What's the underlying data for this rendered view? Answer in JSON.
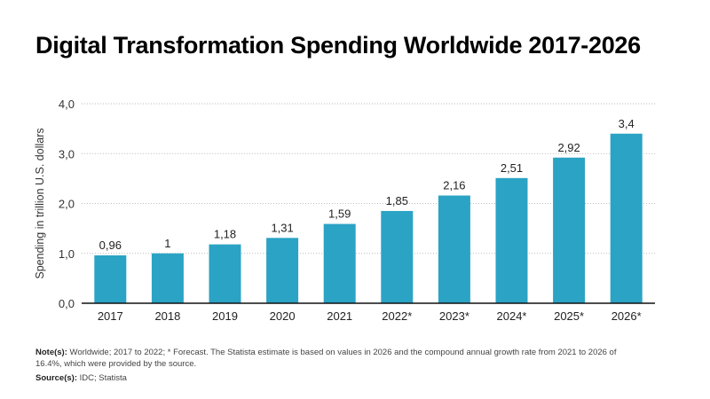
{
  "chart_data": {
    "type": "bar",
    "title": "Digital Transformation Spending Worldwide 2017-2026",
    "xlabel": "",
    "ylabel": "Spending in trillion U.S. dollars",
    "ylim": [
      0,
      4
    ],
    "yticks": [
      "0,0",
      "1,0",
      "2,0",
      "3,0",
      "4,0"
    ],
    "grid": true,
    "bar_color": "#2ba3c4",
    "categories": [
      "2017",
      "2018",
      "2019",
      "2020",
      "2021",
      "2022*",
      "2023*",
      "2024*",
      "2025*",
      "2026*"
    ],
    "values": [
      0.96,
      1,
      1.18,
      1.31,
      1.59,
      1.85,
      2.16,
      2.51,
      2.92,
      3.4
    ],
    "data_labels": [
      "0,96",
      "1",
      "1,18",
      "1,31",
      "1,59",
      "1,85",
      "2,16",
      "2,51",
      "2,92",
      "3,4"
    ]
  },
  "notes": {
    "note_label": "Note(s):",
    "note_text": " Worldwide; 2017 to 2022; * Forecast. The Statista estimate is based on values in 2026 and the compound annual growth rate from 2021 to 2026 of 16.4%, which were provided by the source.",
    "source_label": "Source(s):",
    "source_text": " IDC; Statista"
  }
}
